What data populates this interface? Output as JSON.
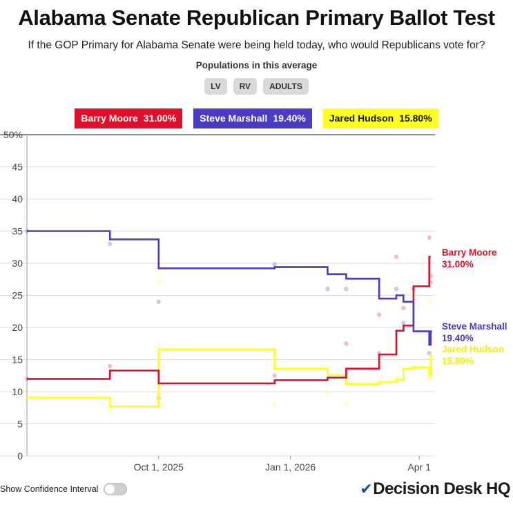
{
  "header": {
    "title": "Alabama Senate Republican Primary Ballot Test",
    "subtitle": "If the GOP Primary for Alabama Senate were being held today, who would Republicans vote for?"
  },
  "populations": {
    "label": "Populations in this average",
    "options": [
      "LV",
      "RV",
      "ADULTS"
    ]
  },
  "legend": [
    {
      "name": "Barry Moore",
      "value": "31.00%",
      "bg": "#e0102a",
      "fg": "#ffffff"
    },
    {
      "name": "Steve Marshall",
      "value": "19.40%",
      "bg": "#4a3bc4",
      "fg": "#ffffff"
    },
    {
      "name": "Jared Hudson",
      "value": "15.80%",
      "bg": "#ffff22",
      "fg": "#111111"
    }
  ],
  "controls": {
    "confidence_label": "Show Confidence Interval",
    "confidence_on": false
  },
  "brand": {
    "name": "Decision Desk HQ"
  },
  "chart_data": {
    "type": "line",
    "x_ticks": [
      {
        "date": "2025-10-01",
        "label": "Oct 1, 2025"
      },
      {
        "date": "2026-01-01",
        "label": "Jan 1, 2026"
      },
      {
        "date": "2026-04-01",
        "label": "Apr 1"
      }
    ],
    "xlim": [
      "2025-07-01",
      "2026-04-12"
    ],
    "ylim": [
      0,
      50
    ],
    "y_ticks": [
      0,
      5,
      10,
      15,
      20,
      25,
      30,
      35,
      40,
      45,
      50
    ],
    "y_tick_labels": [
      "0",
      "5",
      "10",
      "15",
      "20",
      "25",
      "30",
      "35",
      "40",
      "45",
      "50%"
    ],
    "grid": true,
    "series": [
      {
        "name": "Barry Moore",
        "color": "#e0102a",
        "end_label": "Barry Moore",
        "end_value": "31.00%",
        "steps": [
          [
            "2025-07-01",
            12.0
          ],
          [
            "2025-08-28",
            13.3
          ],
          [
            "2025-10-01",
            11.3
          ],
          [
            "2025-12-21",
            11.8
          ],
          [
            "2026-01-27",
            12.2
          ],
          [
            "2026-02-09",
            13.6
          ],
          [
            "2026-03-04",
            15.8
          ],
          [
            "2026-03-16",
            19.5
          ],
          [
            "2026-03-21",
            20.3
          ],
          [
            "2026-03-28",
            26.4
          ],
          [
            "2026-04-08",
            31.0
          ]
        ],
        "polls": [
          [
            "2025-07-01",
            12
          ],
          [
            "2025-08-28",
            14
          ],
          [
            "2025-10-01",
            9
          ],
          [
            "2025-12-21",
            12.5
          ],
          [
            "2026-02-09",
            17.5
          ],
          [
            "2026-03-04",
            22
          ],
          [
            "2026-03-16",
            31
          ],
          [
            "2026-03-21",
            23
          ],
          [
            "2026-03-28",
            26
          ],
          [
            "2026-04-08",
            34
          ],
          [
            "2026-04-09",
            28
          ]
        ]
      },
      {
        "name": "Steve Marshall",
        "color": "#4a3bc4",
        "end_label": "Steve Marshall",
        "end_value": "19.40%",
        "steps": [
          [
            "2025-07-01",
            35.0
          ],
          [
            "2025-08-28",
            33.7
          ],
          [
            "2025-10-01",
            29.2
          ],
          [
            "2025-12-21",
            29.4
          ],
          [
            "2026-01-27",
            28.3
          ],
          [
            "2026-02-09",
            27.6
          ],
          [
            "2026-03-04",
            24.5
          ],
          [
            "2026-03-16",
            25.0
          ],
          [
            "2026-03-21",
            24.0
          ],
          [
            "2026-03-28",
            19.4
          ],
          [
            "2026-04-08",
            17.3
          ],
          [
            "2026-04-09",
            19.4
          ]
        ],
        "polls": [
          [
            "2025-07-01",
            35
          ],
          [
            "2025-08-28",
            33
          ],
          [
            "2025-10-01",
            24
          ],
          [
            "2025-12-21",
            29.8
          ],
          [
            "2026-01-27",
            26
          ],
          [
            "2026-02-09",
            26
          ],
          [
            "2026-03-04",
            16
          ],
          [
            "2026-03-16",
            26
          ],
          [
            "2026-03-21",
            20.7
          ],
          [
            "2026-04-08",
            16
          ],
          [
            "2026-04-09",
            27
          ]
        ]
      },
      {
        "name": "Jared Hudson",
        "color": "#ffff22",
        "end_label": "Jared Hudson",
        "end_value": "15.80%",
        "steps": [
          [
            "2025-07-01",
            9.1
          ],
          [
            "2025-08-28",
            7.7
          ],
          [
            "2025-10-01",
            16.6
          ],
          [
            "2025-12-21",
            13.6
          ],
          [
            "2026-01-27",
            12.6
          ],
          [
            "2026-02-09",
            11.2
          ],
          [
            "2026-03-04",
            11.5
          ],
          [
            "2026-03-16",
            11.9
          ],
          [
            "2026-03-21",
            13.6
          ],
          [
            "2026-03-28",
            13.8
          ],
          [
            "2026-04-08",
            12.5
          ],
          [
            "2026-04-09",
            15.8
          ]
        ],
        "polls": [
          [
            "2025-07-01",
            9
          ],
          [
            "2025-08-28",
            7
          ],
          [
            "2025-10-01",
            27
          ],
          [
            "2025-12-21",
            8
          ],
          [
            "2026-01-27",
            10
          ],
          [
            "2026-02-09",
            8.2
          ],
          [
            "2026-03-16",
            12.2
          ],
          [
            "2026-03-28",
            14
          ],
          [
            "2026-04-08",
            12
          ],
          [
            "2026-04-09",
            24
          ]
        ]
      }
    ]
  }
}
